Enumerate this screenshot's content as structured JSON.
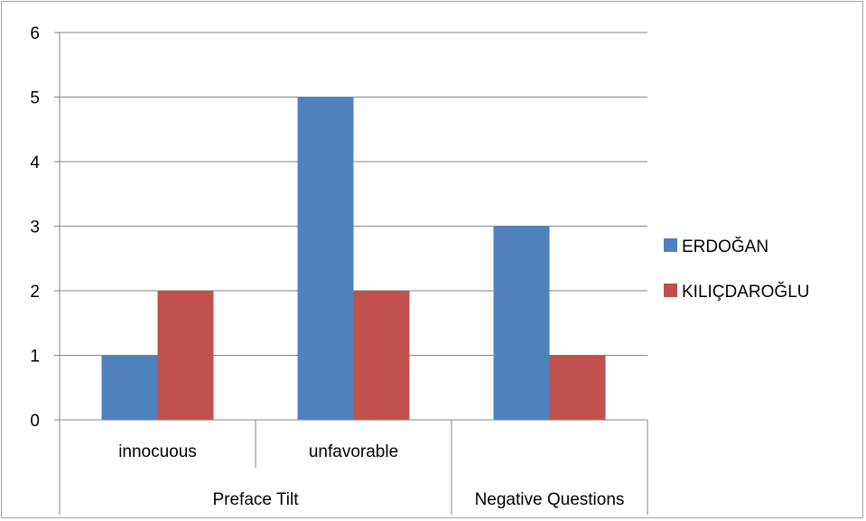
{
  "chart_data": {
    "type": "bar",
    "categories": [
      "innocuous",
      "unfavorable",
      ""
    ],
    "groups": [
      {
        "label": "Preface Tilt",
        "span": [
          0,
          1
        ]
      },
      {
        "label": "Negative Questions",
        "span": [
          2,
          2
        ]
      }
    ],
    "series": [
      {
        "name": "ERDOĞAN",
        "values": [
          1,
          5,
          3
        ],
        "color": "#4f81bd"
      },
      {
        "name": "KILIÇDAROĞLU",
        "values": [
          2,
          2,
          1
        ],
        "color": "#c0504d"
      }
    ],
    "ylim": [
      0,
      6
    ],
    "yticks": [
      "0",
      "1",
      "2",
      "3",
      "4",
      "5",
      "6"
    ],
    "grid": true,
    "legend_position": "right"
  }
}
